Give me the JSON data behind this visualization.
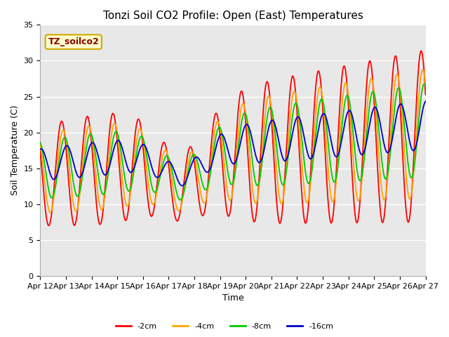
{
  "title": "Tonzi Soil CO2 Profile: Open (East) Temperatures",
  "xlabel": "Time",
  "ylabel": "Soil Temperature (C)",
  "ylim": [
    0,
    35
  ],
  "x_tick_labels": [
    "Apr 12",
    "Apr 13",
    "Apr 14",
    "Apr 15",
    "Apr 16",
    "Apr 17",
    "Apr 18",
    "Apr 19",
    "Apr 20",
    "Apr 21",
    "Apr 22",
    "Apr 23",
    "Apr 24",
    "Apr 25",
    "Apr 26",
    "Apr 27"
  ],
  "series_colors": [
    "#ff0000",
    "#ffa500",
    "#00cc00",
    "#0000cc"
  ],
  "series_labels": [
    "-2cm",
    "-4cm",
    "-8cm",
    "-16cm"
  ],
  "legend_label": "TZ_soilco2",
  "legend_bg": "#ffffcc",
  "legend_edge": "#ccaa00",
  "legend_text_color": "#880000",
  "background_color": "#e8e8e8",
  "grid_color": "#ffffff",
  "title_fontsize": 11,
  "axis_fontsize": 9,
  "tick_fontsize": 8
}
